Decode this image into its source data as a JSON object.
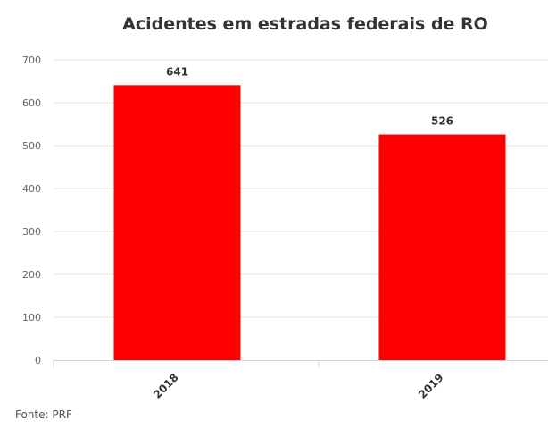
{
  "chart_data": {
    "type": "bar",
    "title": "Acidentes em estradas federais de RO",
    "categories": [
      "2018",
      "2019"
    ],
    "values": [
      641,
      526
    ],
    "data_labels": [
      "641",
      "526"
    ],
    "xlabel": "",
    "ylabel": "",
    "ylim": [
      0,
      700
    ],
    "yticks": [
      "0",
      "100",
      "200",
      "300",
      "400",
      "500",
      "600",
      "700"
    ],
    "grid": true,
    "bar_color": "#ff0000",
    "source": "Fonte: PRF"
  }
}
